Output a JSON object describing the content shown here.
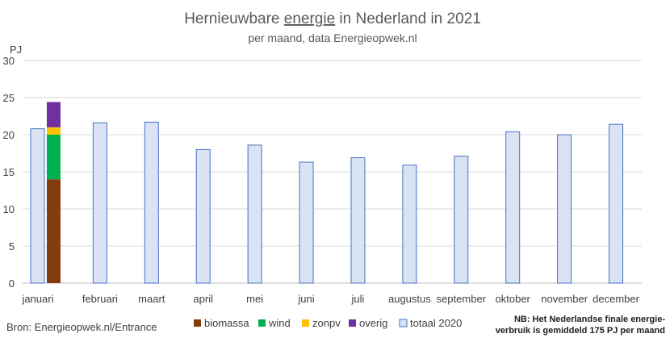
{
  "chart_data": {
    "type": "bar",
    "title": "Hernieuwbare energie in Nederland in 2021",
    "title_parts": {
      "before": "Hernieuwbare ",
      "underlined": "energie",
      "after": " in Nederland in 2021"
    },
    "subtitle": "per maand, data Energieopwek.nl",
    "ylabel": "PJ",
    "xlabel": "",
    "ylim": [
      0,
      30
    ],
    "yticks": [
      0,
      5,
      10,
      15,
      20,
      25,
      30
    ],
    "grid": true,
    "legend_position": "bottom",
    "categories": [
      "januari",
      "februari",
      "maart",
      "april",
      "mei",
      "juni",
      "juli",
      "augustus",
      "september",
      "oktober",
      "november",
      "december"
    ],
    "series": [
      {
        "name": "biomassa",
        "color": "#843c0c",
        "stack": "2021",
        "values": [
          14.0,
          null,
          null,
          null,
          null,
          null,
          null,
          null,
          null,
          null,
          null,
          null
        ]
      },
      {
        "name": "wind",
        "color": "#00b050",
        "stack": "2021",
        "values": [
          6.0,
          null,
          null,
          null,
          null,
          null,
          null,
          null,
          null,
          null,
          null,
          null
        ]
      },
      {
        "name": "zonpv",
        "color": "#ffc000",
        "stack": "2021",
        "values": [
          1.0,
          null,
          null,
          null,
          null,
          null,
          null,
          null,
          null,
          null,
          null,
          null
        ]
      },
      {
        "name": "overig",
        "color": "#7030a0",
        "stack": "2021",
        "values": [
          3.4,
          null,
          null,
          null,
          null,
          null,
          null,
          null,
          null,
          null,
          null,
          null
        ]
      },
      {
        "name": "totaal 2020",
        "color": "#dae3f3",
        "border": "#4472c4",
        "values": [
          20.8,
          21.6,
          21.7,
          18.0,
          18.6,
          16.3,
          16.9,
          15.9,
          17.1,
          20.4,
          20.0,
          21.4
        ]
      }
    ],
    "source": "Bron: Energieopwek.nl/Entrance",
    "note_lines": [
      "NB: Het Nederlandse finale energie-",
      "verbruik is gemiddeld 175 PJ per maand"
    ]
  }
}
